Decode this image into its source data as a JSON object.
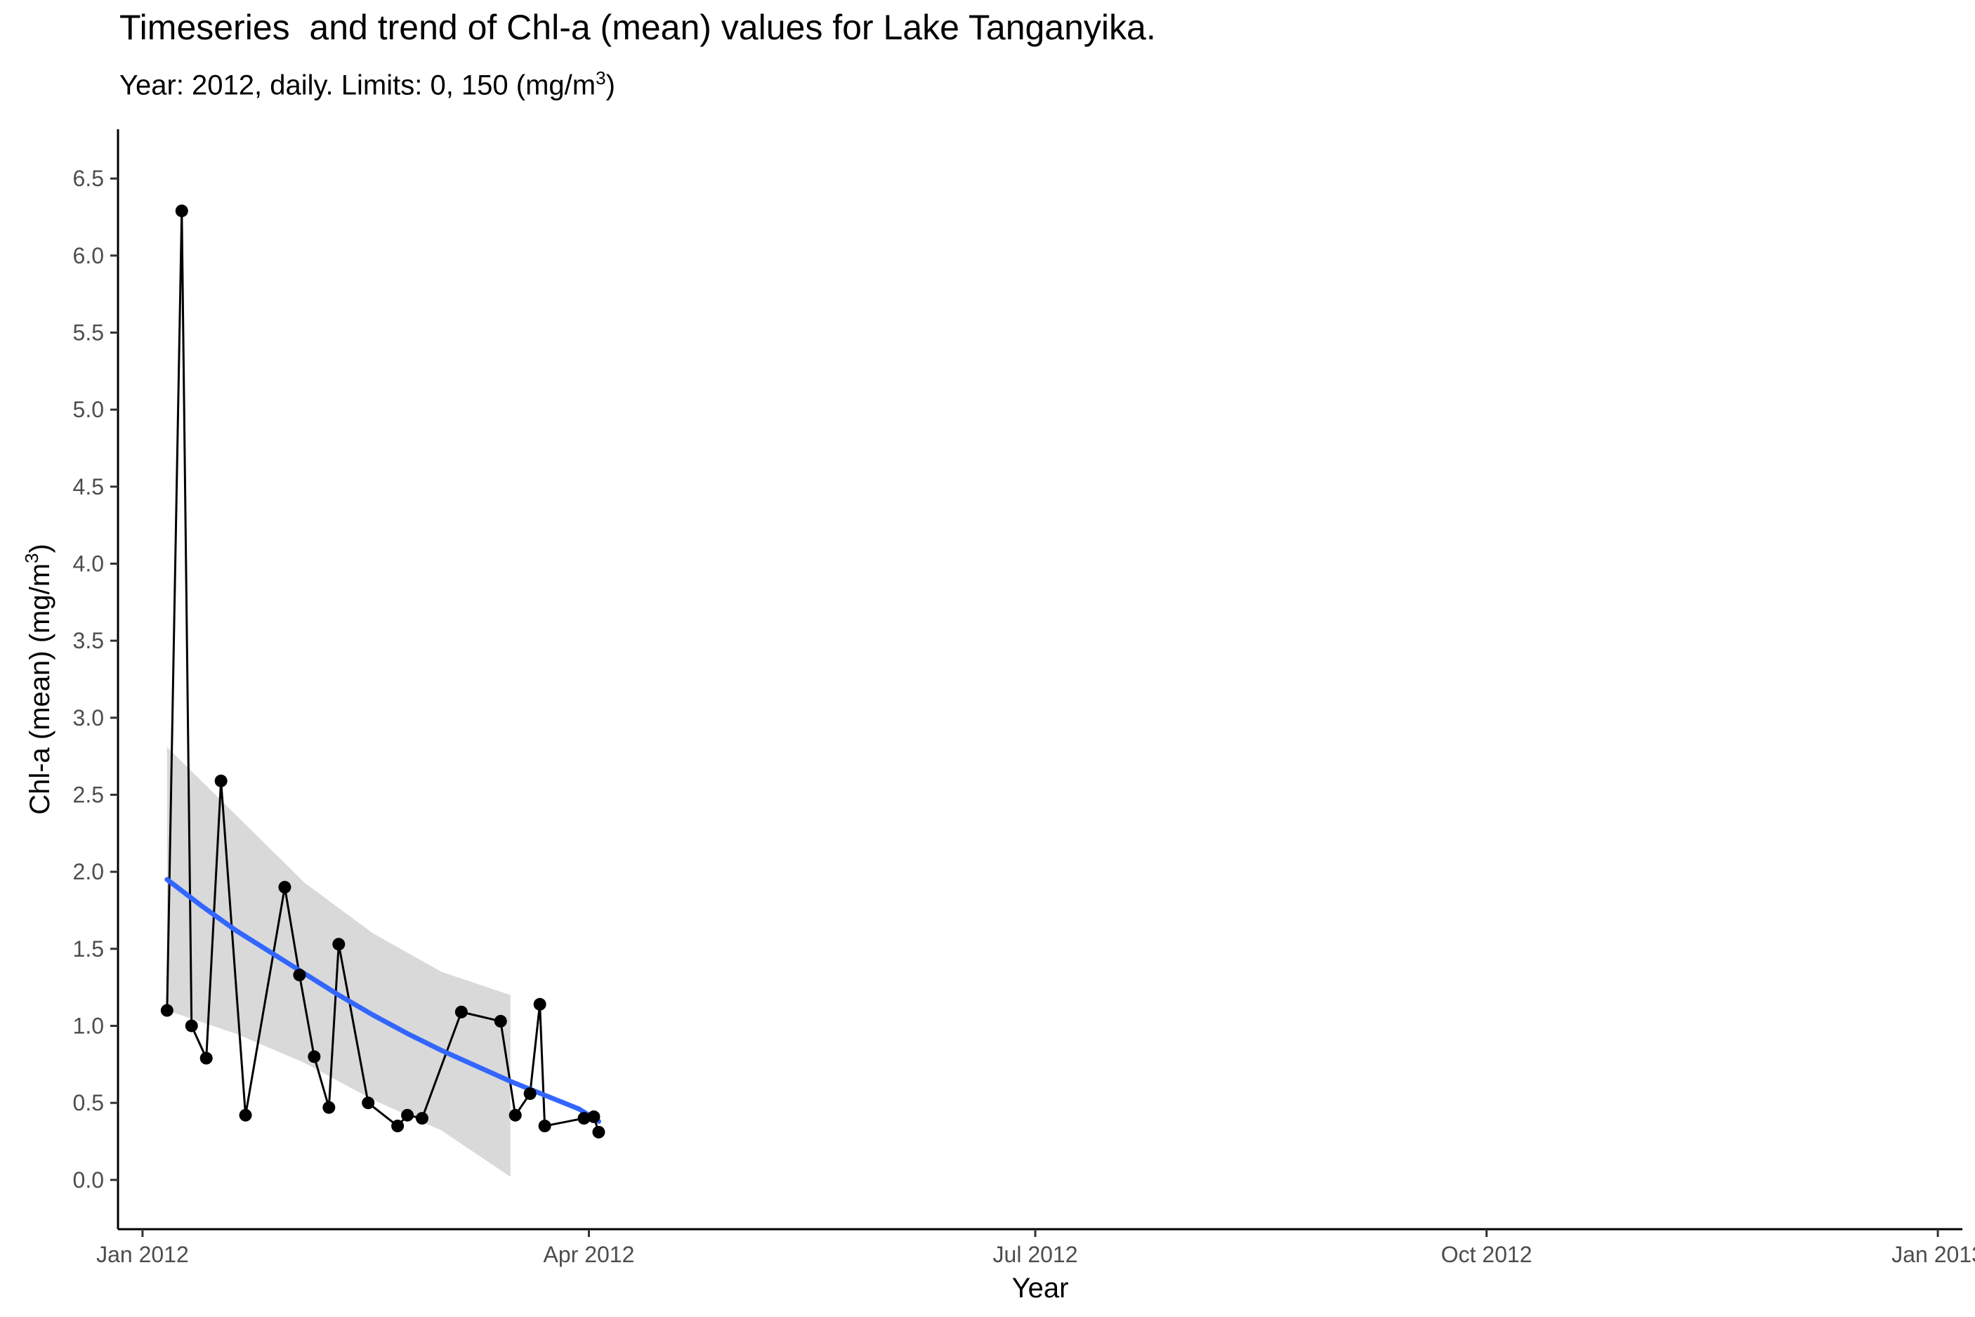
{
  "chart_data": {
    "type": "line",
    "title": "Timeseries  and trend of Chl-a (mean) values for Lake Tanganyika.",
    "subtitle": {
      "text": "Year: 2012, daily. Limits: 0, 150 (mg/m",
      "superscript": "3",
      "closing": ")"
    },
    "xlabel": "Year",
    "ylabel": {
      "text": "Chl-a (mean) (mg/m",
      "superscript": "3",
      "closing": ")"
    },
    "x_axis": {
      "scale": "date",
      "range": [
        "2011-12-27",
        "2013-01-06"
      ],
      "ticks": [
        {
          "date": "2012-01-01",
          "label": "Jan 2012"
        },
        {
          "date": "2012-04-01",
          "label": "Apr 2012"
        },
        {
          "date": "2012-07-01",
          "label": "Jul 2012"
        },
        {
          "date": "2012-10-01",
          "label": "Oct 2012"
        },
        {
          "date": "2013-01-01",
          "label": "Jan 2013"
        }
      ]
    },
    "y_axis": {
      "range": [
        -0.32,
        6.82
      ],
      "ticks": [
        "0.0",
        "0.5",
        "1.0",
        "1.5",
        "2.0",
        "2.5",
        "3.0",
        "3.5",
        "4.0",
        "4.5",
        "5.0",
        "5.5",
        "6.0",
        "6.5"
      ]
    },
    "grid": false,
    "legend": "none",
    "series": [
      {
        "kind": "observations",
        "color": "#000000",
        "points": [
          {
            "x": "2012-01-06",
            "y": 1.1
          },
          {
            "x": "2012-01-09",
            "y": 6.29
          },
          {
            "x": "2012-01-11",
            "y": 1.0
          },
          {
            "x": "2012-01-14",
            "y": 0.79
          },
          {
            "x": "2012-01-17",
            "y": 2.59
          },
          {
            "x": "2012-01-22",
            "y": 0.42
          },
          {
            "x": "2012-01-30",
            "y": 1.9
          },
          {
            "x": "2012-02-02",
            "y": 1.33
          },
          {
            "x": "2012-02-05",
            "y": 0.8
          },
          {
            "x": "2012-02-08",
            "y": 0.47
          },
          {
            "x": "2012-02-10",
            "y": 1.53
          },
          {
            "x": "2012-02-16",
            "y": 0.5
          },
          {
            "x": "2012-02-22",
            "y": 0.35
          },
          {
            "x": "2012-02-24",
            "y": 0.42
          },
          {
            "x": "2012-02-27",
            "y": 0.4
          },
          {
            "x": "2012-03-06",
            "y": 1.09
          },
          {
            "x": "2012-03-14",
            "y": 1.03
          },
          {
            "x": "2012-03-17",
            "y": 0.42
          },
          {
            "x": "2012-03-20",
            "y": 0.56
          },
          {
            "x": "2012-03-22",
            "y": 1.14
          },
          {
            "x": "2012-03-23",
            "y": 0.35
          },
          {
            "x": "2012-03-31",
            "y": 0.4
          },
          {
            "x": "2012-04-02",
            "y": 0.41
          },
          {
            "x": "2012-04-03",
            "y": 0.31
          }
        ]
      },
      {
        "kind": "trend",
        "color": "#3366ff",
        "points": [
          {
            "x": "2012-01-06",
            "y": 1.95
          },
          {
            "x": "2012-01-13",
            "y": 1.78
          },
          {
            "x": "2012-01-20",
            "y": 1.62
          },
          {
            "x": "2012-01-27",
            "y": 1.48
          },
          {
            "x": "2012-02-03",
            "y": 1.34
          },
          {
            "x": "2012-02-10",
            "y": 1.2
          },
          {
            "x": "2012-02-17",
            "y": 1.07
          },
          {
            "x": "2012-02-24",
            "y": 0.95
          },
          {
            "x": "2012-03-02",
            "y": 0.84
          },
          {
            "x": "2012-03-09",
            "y": 0.74
          },
          {
            "x": "2012-03-16",
            "y": 0.64
          },
          {
            "x": "2012-03-23",
            "y": 0.55
          },
          {
            "x": "2012-03-30",
            "y": 0.46
          },
          {
            "x": "2012-04-03",
            "y": 0.38
          }
        ]
      },
      {
        "kind": "confidence-band",
        "color": "#d9d9d9",
        "x": [
          "2012-01-06",
          "2012-01-20",
          "2012-02-03",
          "2012-02-17",
          "2012-03-02",
          "2012-03-16"
        ],
        "upper": [
          2.81,
          2.37,
          1.93,
          1.6,
          1.35,
          1.2
        ],
        "lower": [
          1.1,
          0.95,
          0.76,
          0.52,
          0.32,
          0.02
        ]
      }
    ]
  }
}
